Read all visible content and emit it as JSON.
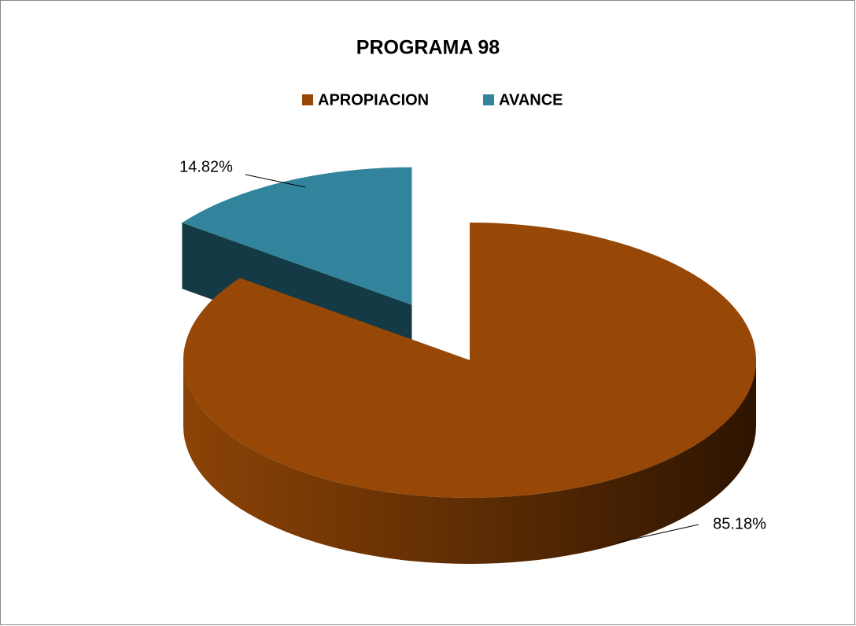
{
  "chart_data": {
    "type": "pie",
    "title": "PROGRAMA 98",
    "categories": [
      "APROPIACION",
      "AVANCE"
    ],
    "values": [
      85.18,
      14.82
    ],
    "value_labels": [
      "85.18%",
      "14.82%"
    ],
    "colors": [
      "#974706",
      "#31849b"
    ],
    "legend": "top"
  }
}
